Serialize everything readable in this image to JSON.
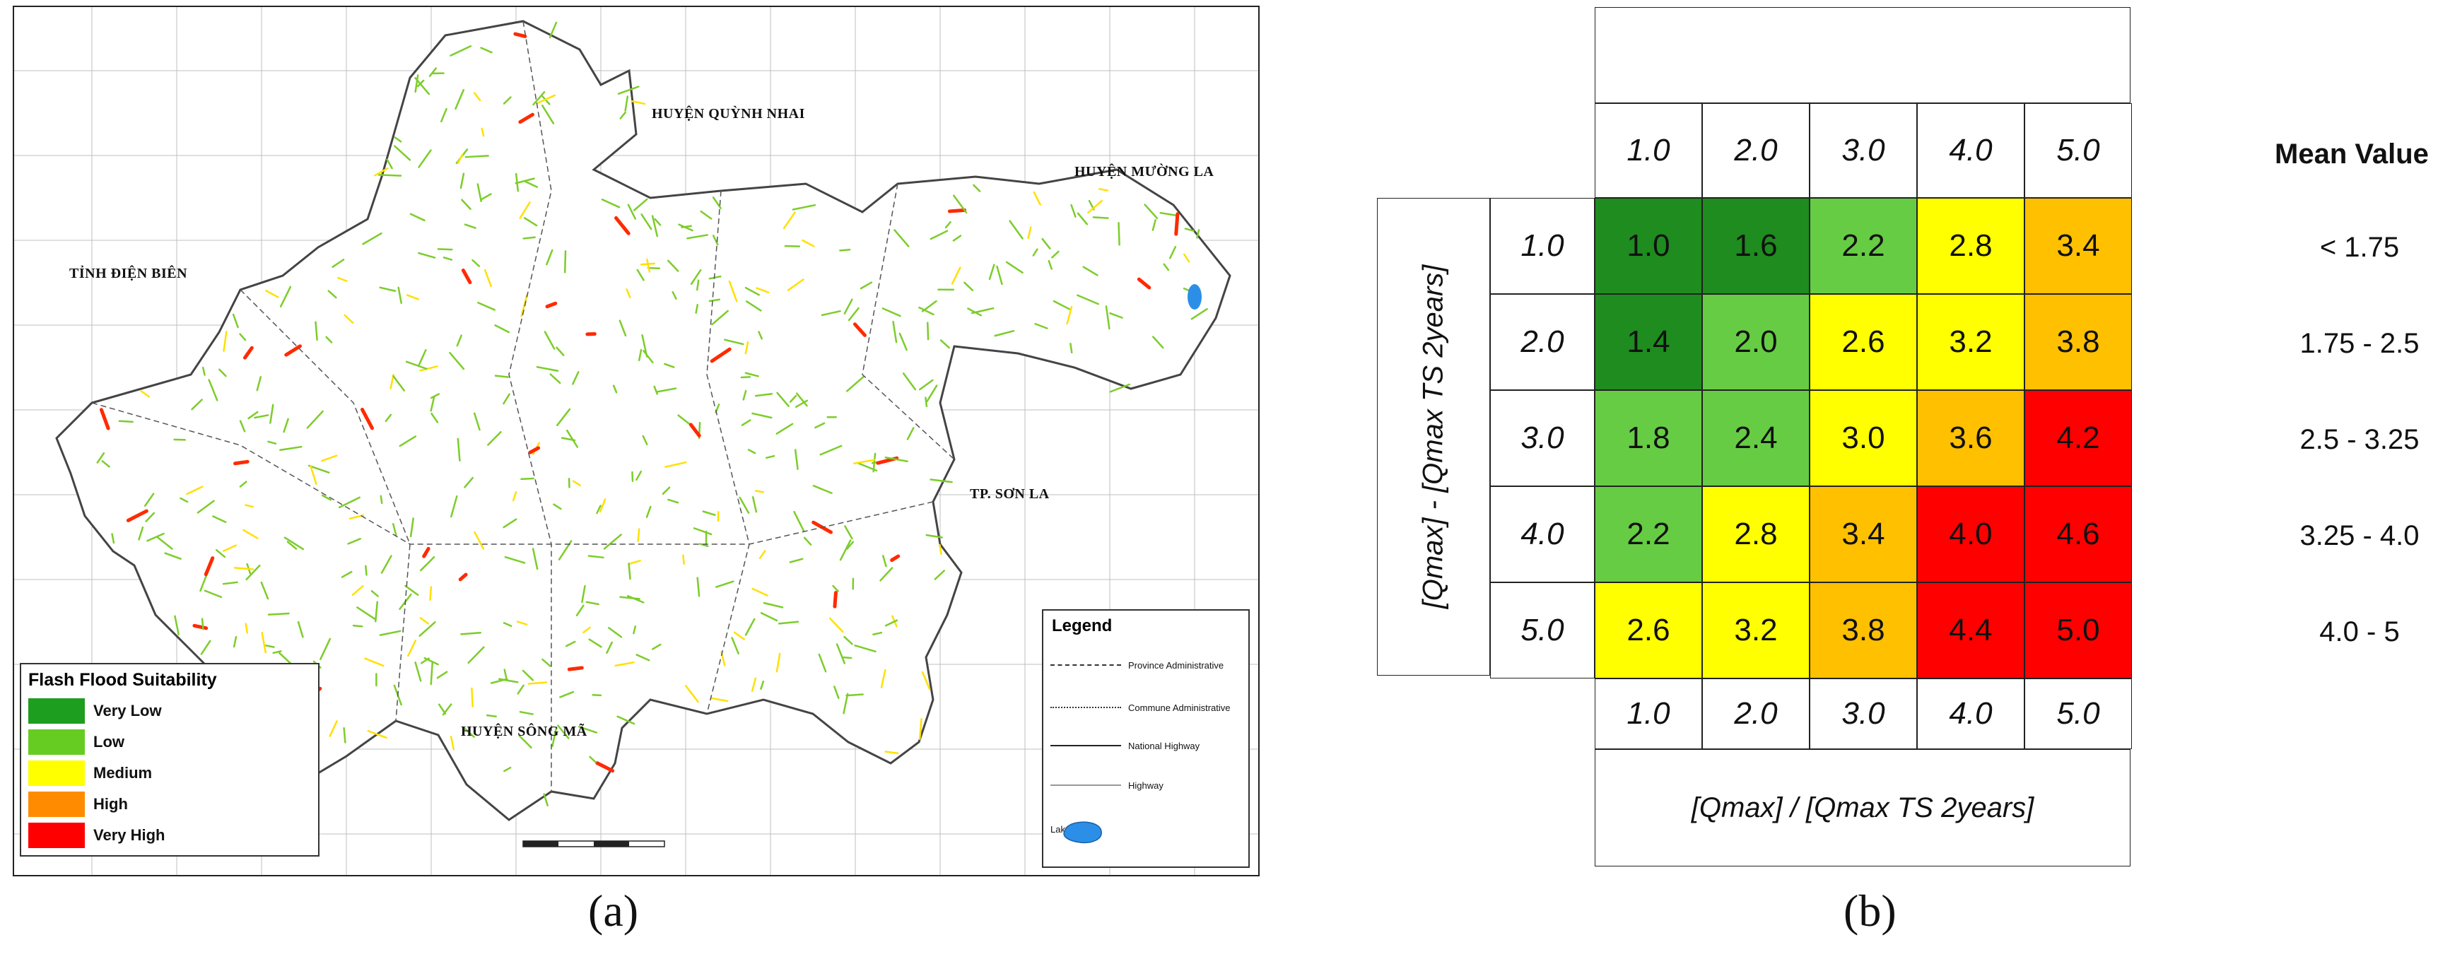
{
  "panel_a": {
    "caption": "(a)",
    "place_names": [
      {
        "text": "HUYỆN QUỲNH NHAI"
      },
      {
        "text": "HUYỆN MƯỜNG LA"
      },
      {
        "text": "TỈNH ĐIỆN BIÊN"
      },
      {
        "text": "TP. SƠN LA"
      },
      {
        "text": "HUYỆN SÔNG MÃ"
      }
    ],
    "suitability_legend": {
      "title": "Flash Flood Suitability",
      "items": [
        {
          "label": "Very Low",
          "color": "#1E9E1E"
        },
        {
          "label": "Low",
          "color": "#66CC22"
        },
        {
          "label": "Medium",
          "color": "#FFFF00"
        },
        {
          "label": "High",
          "color": "#FF8C00"
        },
        {
          "label": "Very High",
          "color": "#FF0000"
        }
      ]
    },
    "map_legend": {
      "title": "Legend",
      "items": [
        {
          "label": "Province Administrative",
          "style": "dash-dot"
        },
        {
          "label": "Commune Administrative",
          "style": "dashed"
        },
        {
          "label": "National Highway",
          "style": "solid-dark"
        },
        {
          "label": "Highway",
          "style": "solid-light"
        },
        {
          "label": "Lake",
          "style": "lake"
        }
      ]
    },
    "colors": {
      "boundary": "#444444",
      "land": "#ffffff",
      "stream": "#7CCD2A",
      "hot": "#FF2A00",
      "lake": "#2B8FE8"
    }
  },
  "panel_b": {
    "caption": "(b)",
    "x_axis_title": "[Qmax] / [Qmax TS 2years]",
    "y_axis_title": "[Qmax] - [Qmax TS 2years]",
    "col_headers": [
      "1.0",
      "2.0",
      "3.0",
      "4.0",
      "5.0"
    ],
    "row_headers": [
      "1.0",
      "2.0",
      "3.0",
      "4.0",
      "5.0"
    ],
    "matrix": [
      [
        "1.0",
        "1.6",
        "2.2",
        "2.8",
        "3.4"
      ],
      [
        "1.4",
        "2.0",
        "2.6",
        "3.2",
        "3.8"
      ],
      [
        "1.8",
        "2.4",
        "3.0",
        "3.6",
        "4.2"
      ],
      [
        "2.2",
        "2.8",
        "3.4",
        "4.0",
        "4.6"
      ],
      [
        "2.6",
        "3.2",
        "3.8",
        "4.4",
        "5.0"
      ]
    ],
    "mean_value_title": "Mean Value",
    "mean_value_classes": [
      {
        "label": "< 1.75",
        "color": "#1E8C1E"
      },
      {
        "label": "1.75 - 2.5",
        "color": "#66CC44"
      },
      {
        "label": "2.5 - 3.25",
        "color": "#FFFF00"
      },
      {
        "label": "3.25 - 4.0",
        "color": "#FFC000"
      },
      {
        "label": "4.0 - 5",
        "color": "#FF0000"
      }
    ]
  }
}
